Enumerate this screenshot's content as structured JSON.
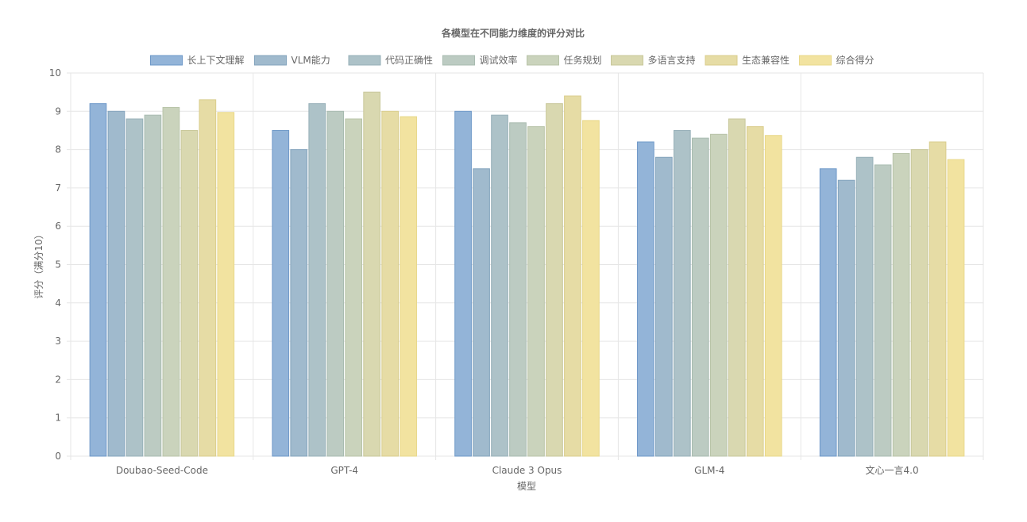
{
  "chart_data": {
    "type": "bar",
    "title": "各模型在不同能力维度的评分对比",
    "xlabel": "模型",
    "ylabel": "评分（满分10）",
    "ylim": [
      0,
      10
    ],
    "yticks": [
      0,
      1,
      2,
      3,
      4,
      5,
      6,
      7,
      8,
      9,
      10
    ],
    "grid": true,
    "legend_position": "top",
    "categories": [
      "Doubao-Seed-Code",
      "GPT-4",
      "Claude 3 Opus",
      "GLM-4",
      "文心一言4.0"
    ],
    "series": [
      {
        "name": "长上下文理解",
        "values": [
          9.2,
          8.5,
          9.0,
          8.2,
          7.5
        ],
        "color": "#93b4d8",
        "border": "#6e98c8"
      },
      {
        "name": "VLM能力",
        "values": [
          9.0,
          8.0,
          7.5,
          7.8,
          7.2
        ],
        "color": "#a0bacd",
        "border": "#84a4bd"
      },
      {
        "name": "代码正确性",
        "values": [
          8.8,
          9.2,
          8.9,
          8.5,
          7.8
        ],
        "color": "#adc2c8",
        "border": "#97b0b8"
      },
      {
        "name": "调试效率",
        "values": [
          8.9,
          9.0,
          8.7,
          8.3,
          7.6
        ],
        "color": "#bccbc2",
        "border": "#a8bbb0"
      },
      {
        "name": "任务规划",
        "values": [
          9.1,
          8.8,
          8.6,
          8.4,
          7.9
        ],
        "color": "#cad3bc",
        "border": "#b8c3a8"
      },
      {
        "name": "多语言支持",
        "values": [
          8.5,
          9.5,
          9.2,
          8.8,
          8.0
        ],
        "color": "#d9d8b0",
        "border": "#c8c79a"
      },
      {
        "name": "生态兼容性",
        "values": [
          9.3,
          9.0,
          9.4,
          8.6,
          8.2
        ],
        "color": "#e6dca5",
        "border": "#d9cd8c"
      },
      {
        "name": "综合得分",
        "values": [
          8.97,
          8.86,
          8.76,
          8.37,
          7.74
        ],
        "color": "#f2e3a0",
        "border": "#e8d88a"
      }
    ]
  }
}
